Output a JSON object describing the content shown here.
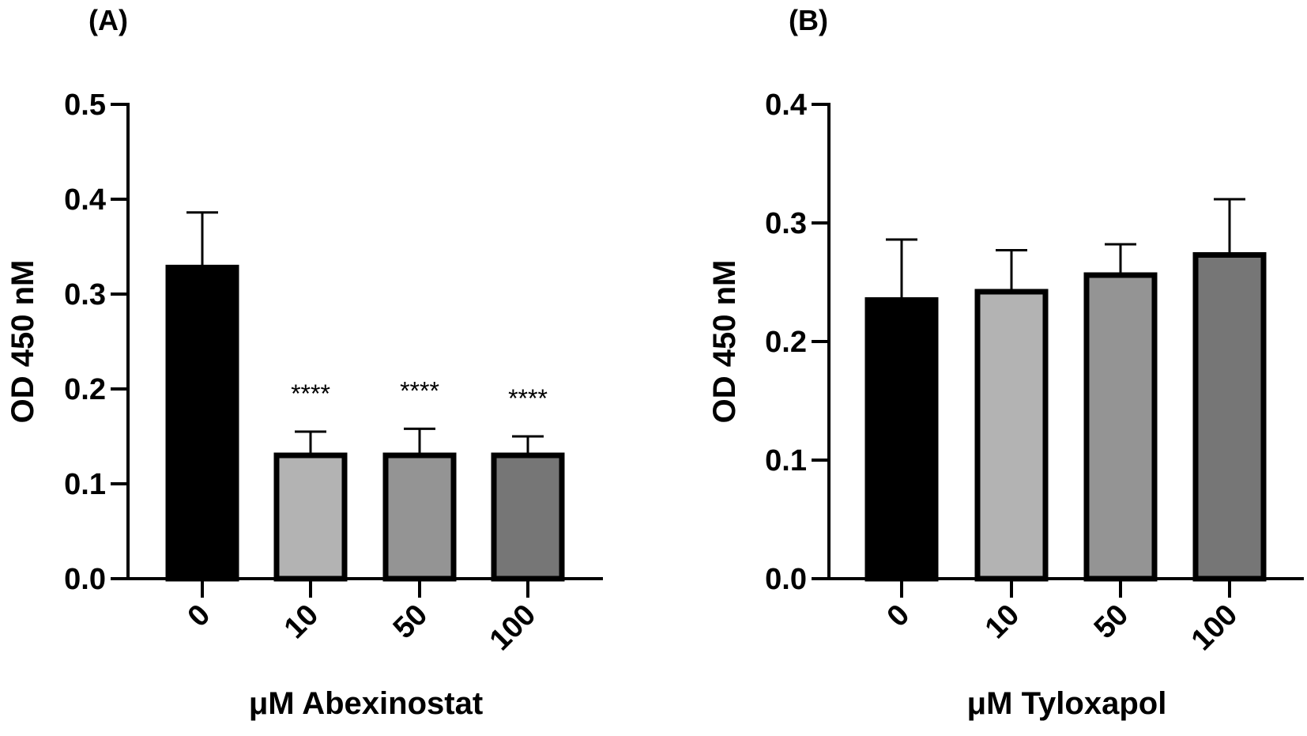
{
  "figure": {
    "panels": [
      "(A)",
      "(B)"
    ]
  },
  "chart_data": [
    {
      "panel": "(A)",
      "type": "bar",
      "categories": [
        "0",
        "10",
        "50",
        "100"
      ],
      "values": [
        0.328,
        0.13,
        0.13,
        0.13
      ],
      "errors": [
        0.058,
        0.025,
        0.028,
        0.02
      ],
      "colors": [
        "#000000",
        "#b3b3b3",
        "#949494",
        "#767676"
      ],
      "significance": [
        "",
        "****",
        "****",
        "****"
      ],
      "title": "",
      "xlabel": "μM Abexinostat",
      "ylabel": "OD 450 nM",
      "ylim": [
        0,
        0.5
      ],
      "yticks": [
        0.0,
        0.1,
        0.2,
        0.3,
        0.4,
        0.5
      ],
      "ytick_labels": [
        "0.0",
        "0.1",
        "0.2",
        "0.3",
        "0.4",
        "0.5"
      ]
    },
    {
      "panel": "(B)",
      "type": "bar",
      "categories": [
        "0",
        "10",
        "50",
        "100"
      ],
      "values": [
        0.235,
        0.242,
        0.256,
        0.273
      ],
      "errors": [
        0.051,
        0.035,
        0.026,
        0.047
      ],
      "colors": [
        "#000000",
        "#b3b3b3",
        "#949494",
        "#767676"
      ],
      "significance": [
        "",
        "",
        "",
        ""
      ],
      "title": "",
      "xlabel": "μM Tyloxapol",
      "ylabel": "OD 450 nM",
      "ylim": [
        0,
        0.4
      ],
      "yticks": [
        0.0,
        0.1,
        0.2,
        0.3,
        0.4
      ],
      "ytick_labels": [
        "0.0",
        "0.1",
        "0.2",
        "0.3",
        "0.4"
      ]
    }
  ]
}
